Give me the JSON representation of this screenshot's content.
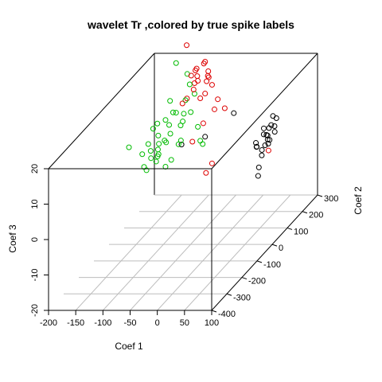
{
  "chart_data": {
    "type": "scatter3d",
    "title": "wavelet Tr ,colored by true spike labels",
    "xlabel": "Coef 1",
    "ylabel": "Coef 2",
    "zlabel": "Coef 3",
    "xlim": [
      -200,
      100
    ],
    "ylim": [
      -400,
      300
    ],
    "zlim": [
      -20,
      20
    ],
    "xticks": [
      "-200",
      "-150",
      "-100",
      "-50",
      "0",
      "50",
      "100"
    ],
    "yticks": [
      "-400",
      "-300",
      "-200",
      "-100",
      "0",
      "100",
      "200",
      "300"
    ],
    "zticks": [
      "-20",
      "-10",
      "0",
      "10",
      "20"
    ],
    "grid": true,
    "box": true,
    "series": [
      {
        "name": "black",
        "color": "#000000",
        "points": [
          [
            -50,
            -60,
            11
          ],
          [
            10,
            -120,
            16
          ],
          [
            35,
            -20,
            18
          ],
          [
            86,
            -5,
            13
          ],
          [
            83,
            40,
            11
          ],
          [
            82,
            70,
            13
          ],
          [
            90,
            10,
            8
          ],
          [
            92,
            -40,
            7
          ],
          [
            95,
            -70,
            5
          ],
          [
            88,
            60,
            9
          ],
          [
            80,
            100,
            11
          ],
          [
            84,
            -50,
            11
          ],
          [
            80,
            -30,
            9
          ],
          [
            98,
            -10,
            10
          ],
          [
            96,
            30,
            12
          ],
          [
            90,
            -20,
            12
          ],
          [
            76,
            80,
            10
          ],
          [
            100,
            -30,
            11
          ],
          [
            87,
            0,
            8
          ],
          [
            84,
            20,
            10
          ],
          [
            93,
            -5,
            11
          ],
          [
            102,
            -100,
            4
          ],
          [
            95,
            -50,
            9
          ],
          [
            74,
            -10,
            8
          ]
        ]
      },
      {
        "name": "red",
        "color": "#dd0000",
        "points": [
          [
            -35,
            -80,
            40
          ],
          [
            -25,
            -50,
            32
          ],
          [
            -30,
            -40,
            31
          ],
          [
            -35,
            -50,
            30
          ],
          [
            -20,
            -20,
            32
          ],
          [
            -15,
            -30,
            33
          ],
          [
            -5,
            -45,
            31
          ],
          [
            0,
            -60,
            30
          ],
          [
            -10,
            -30,
            29
          ],
          [
            -35,
            -10,
            28
          ],
          [
            -15,
            -20,
            27
          ],
          [
            -40,
            -10,
            26
          ],
          [
            -20,
            -60,
            29
          ],
          [
            -25,
            -70,
            27
          ],
          [
            -10,
            -80,
            25
          ],
          [
            -15,
            -30,
            24
          ],
          [
            -5,
            -20,
            26
          ],
          [
            0,
            0,
            21
          ],
          [
            10,
            10,
            18
          ],
          [
            5,
            -40,
            20
          ],
          [
            -10,
            -60,
            17
          ],
          [
            -5,
            -150,
            16
          ],
          [
            96,
            -10,
            7
          ],
          [
            -40,
            -60,
            24
          ],
          [
            -40,
            -90,
            24
          ],
          [
            -5,
            -60,
            3
          ],
          [
            20,
            -110,
            8
          ]
        ]
      },
      {
        "name": "green",
        "color": "#00bb00",
        "points": [
          [
            -60,
            -60,
            34
          ],
          [
            -45,
            -40,
            30
          ],
          [
            -35,
            -60,
            28
          ],
          [
            -40,
            -70,
            24
          ],
          [
            -40,
            -10,
            23
          ],
          [
            -60,
            -80,
            21
          ],
          [
            -85,
            -10,
            21
          ],
          [
            -60,
            -60,
            20
          ],
          [
            -50,
            -45,
            19
          ],
          [
            -40,
            -35,
            19
          ],
          [
            -45,
            -70,
            18
          ],
          [
            -70,
            -70,
            17
          ],
          [
            -85,
            -40,
            17
          ],
          [
            -100,
            -40,
            16
          ],
          [
            -90,
            -70,
            14
          ],
          [
            -65,
            -80,
            15
          ],
          [
            -70,
            -100,
            14
          ],
          [
            -105,
            -50,
            15
          ],
          [
            -70,
            -140,
            12
          ],
          [
            -90,
            -120,
            12
          ],
          [
            -100,
            -100,
            13
          ],
          [
            -70,
            -90,
            13
          ],
          [
            -80,
            -110,
            10
          ],
          [
            -95,
            -100,
            9
          ],
          [
            -100,
            -140,
            12
          ],
          [
            -80,
            -120,
            9
          ],
          [
            -60,
            -130,
            8
          ],
          [
            -40,
            -100,
            14
          ],
          [
            -10,
            -80,
            13
          ],
          [
            0,
            -100,
            13
          ],
          [
            -60,
            -30,
            15
          ],
          [
            -85,
            -90,
            11
          ],
          [
            -130,
            -120,
            13
          ],
          [
            -105,
            -110,
            7
          ],
          [
            -95,
            -130,
            7
          ],
          [
            -55,
            -110,
            9
          ],
          [
            -20,
            -60,
            16
          ],
          [
            -50,
            -80,
            12
          ],
          [
            -75,
            -120,
            14
          ]
        ]
      }
    ]
  }
}
